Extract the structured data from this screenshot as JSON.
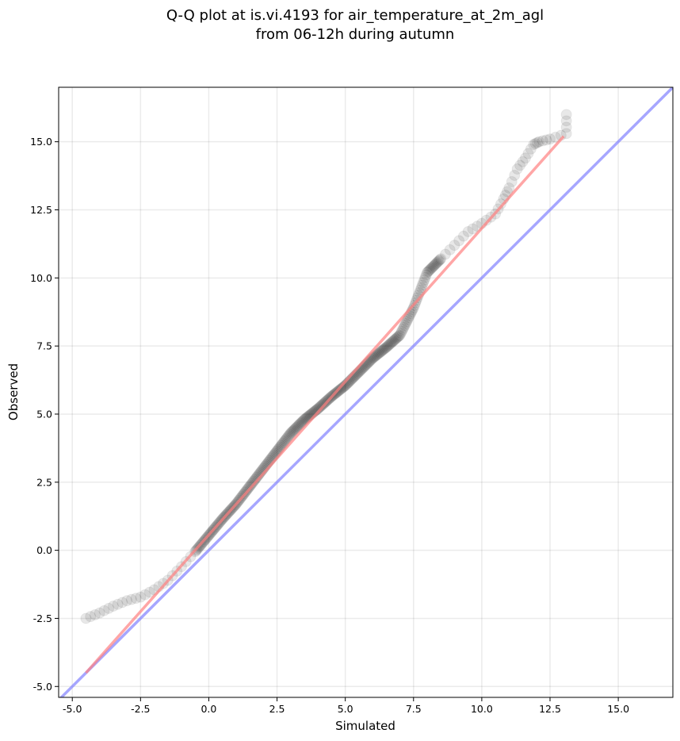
{
  "chart_data": {
    "type": "scatter",
    "title_line1": "Q-Q plot at is.vi.4193 for air_temperature_at_2m_agl",
    "title_line2": "from 06-12h during autumn",
    "xlabel": "Simulated",
    "ylabel": "Observed",
    "xlim": [
      -5.5,
      17.0
    ],
    "ylim": [
      -5.4,
      17.0
    ],
    "xticks": [
      -5.0,
      -2.5,
      0.0,
      2.5,
      5.0,
      7.5,
      10.0,
      12.5,
      15.0
    ],
    "xtick_labels": [
      "-5.0",
      "-2.5",
      "0.0",
      "2.5",
      "5.0",
      "7.5",
      "10.0",
      "12.5",
      "15.0"
    ],
    "yticks": [
      -5.0,
      -2.5,
      0.0,
      2.5,
      5.0,
      7.5,
      10.0,
      12.5,
      15.0
    ],
    "ytick_labels": [
      "-5.0",
      "-2.5",
      "0.0",
      "2.5",
      "5.0",
      "7.5",
      "10.0",
      "12.5",
      "15.0"
    ],
    "grid": true,
    "point_color": "#000000",
    "fit_line_color": "#ff8080",
    "identity_line_color": "#8888ff",
    "quantile_curve": [
      [
        -4.5,
        -2.5
      ],
      [
        -4.0,
        -2.3
      ],
      [
        -3.5,
        -2.05
      ],
      [
        -3.0,
        -1.85
      ],
      [
        -2.5,
        -1.72
      ],
      [
        -2.0,
        -1.45
      ],
      [
        -1.5,
        -1.1
      ],
      [
        -1.0,
        -0.6
      ],
      [
        -0.5,
        -0.05
      ],
      [
        0.0,
        0.55
      ],
      [
        0.5,
        1.15
      ],
      [
        1.0,
        1.7
      ],
      [
        1.5,
        2.35
      ],
      [
        2.0,
        3.0
      ],
      [
        2.5,
        3.65
      ],
      [
        3.0,
        4.3
      ],
      [
        3.5,
        4.8
      ],
      [
        4.0,
        5.2
      ],
      [
        4.5,
        5.65
      ],
      [
        5.0,
        6.05
      ],
      [
        5.5,
        6.55
      ],
      [
        6.0,
        7.05
      ],
      [
        6.5,
        7.45
      ],
      [
        7.0,
        7.9
      ],
      [
        7.5,
        8.9
      ],
      [
        8.0,
        10.2
      ],
      [
        8.5,
        10.7
      ],
      [
        9.0,
        11.2
      ],
      [
        9.5,
        11.7
      ],
      [
        10.0,
        12.0
      ],
      [
        10.5,
        12.35
      ],
      [
        10.8,
        12.9
      ],
      [
        11.0,
        13.3
      ],
      [
        11.3,
        14.0
      ],
      [
        11.6,
        14.4
      ],
      [
        11.9,
        14.9
      ],
      [
        12.1,
        15.0
      ],
      [
        12.5,
        15.1
      ],
      [
        13.1,
        15.3
      ],
      [
        13.1,
        16.0
      ]
    ],
    "fit_line": [
      [
        -4.5,
        -4.5
      ],
      [
        13.0,
        15.2
      ]
    ],
    "identity_line": [
      [
        -5.5,
        -5.5
      ],
      [
        17.0,
        17.0
      ]
    ]
  }
}
